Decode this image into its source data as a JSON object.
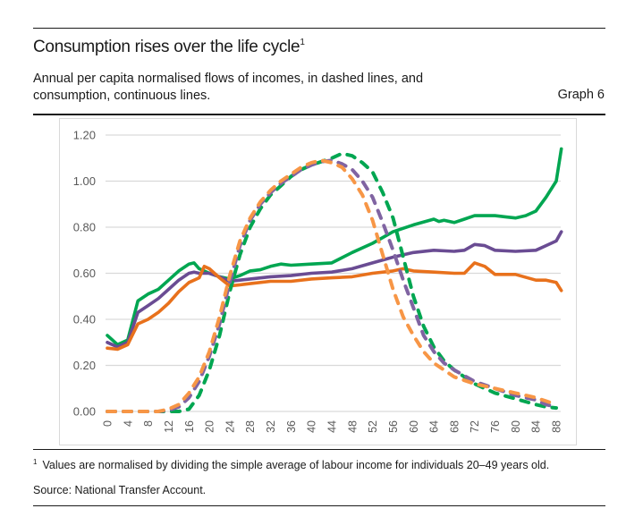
{
  "header": {
    "title": "Consumption rises over the life cycle",
    "title_footnote_marker": "1",
    "subtitle": "Annual per capita normalised flows of incomes, in dashed lines, and consumption, continuous lines.",
    "graph_label": "Graph 6"
  },
  "footer": {
    "footnote_marker": "1",
    "footnote_text": "Values are normalised by dividing the simple average of labour income for individuals 20–49 years old.",
    "source": "Source: National Transfer Account."
  },
  "chart_data": {
    "type": "line",
    "title": "Consumption rises over the life cycle",
    "xlabel": "",
    "ylabel": "",
    "xlim": [
      0,
      89
    ],
    "ylim": [
      0,
      1.2
    ],
    "grid": true,
    "legend": "none",
    "y_ticks": [
      "0.00",
      "0.20",
      "0.40",
      "0.60",
      "0.80",
      "1.00",
      "1.20"
    ],
    "y_tick_values": [
      0,
      0.2,
      0.4,
      0.6,
      0.8,
      1.0,
      1.2
    ],
    "x_ticks": [
      "0",
      "4",
      "8",
      "12",
      "16",
      "20",
      "24",
      "28",
      "32",
      "36",
      "40",
      "44",
      "48",
      "52",
      "56",
      "60",
      "64",
      "68",
      "72",
      "76",
      "80",
      "84",
      "88"
    ],
    "x_tick_values": [
      0,
      4,
      8,
      12,
      16,
      20,
      24,
      28,
      32,
      36,
      40,
      44,
      48,
      52,
      56,
      60,
      64,
      68,
      72,
      76,
      80,
      84,
      88
    ],
    "series": [
      {
        "name": "Consumption (green)",
        "style": "solid",
        "color": "#00a651",
        "x": [
          0,
          2,
          4,
          6,
          8,
          10,
          12,
          14,
          16,
          17,
          18,
          20,
          22,
          24,
          26,
          28,
          30,
          32,
          34,
          36,
          40,
          44,
          48,
          52,
          56,
          60,
          64,
          65,
          66,
          68,
          70,
          72,
          76,
          78,
          80,
          82,
          84,
          86,
          88,
          89
        ],
        "y": [
          0.33,
          0.29,
          0.31,
          0.48,
          0.51,
          0.53,
          0.57,
          0.61,
          0.64,
          0.645,
          0.62,
          0.6,
          0.585,
          0.575,
          0.59,
          0.61,
          0.615,
          0.63,
          0.64,
          0.635,
          0.64,
          0.645,
          0.69,
          0.73,
          0.78,
          0.81,
          0.835,
          0.825,
          0.83,
          0.82,
          0.835,
          0.85,
          0.85,
          0.845,
          0.84,
          0.85,
          0.87,
          0.93,
          1.0,
          1.14
        ]
      },
      {
        "name": "Consumption (purple)",
        "style": "solid",
        "color": "#6a4c93",
        "x": [
          0,
          2,
          4,
          6,
          8,
          10,
          12,
          14,
          16,
          17,
          18,
          20,
          22,
          24,
          26,
          28,
          32,
          36,
          40,
          44,
          48,
          52,
          56,
          60,
          64,
          68,
          70,
          72,
          74,
          76,
          80,
          84,
          86,
          88,
          89
        ],
        "y": [
          0.3,
          0.28,
          0.3,
          0.43,
          0.46,
          0.49,
          0.53,
          0.57,
          0.6,
          0.605,
          0.6,
          0.6,
          0.585,
          0.565,
          0.57,
          0.575,
          0.585,
          0.59,
          0.6,
          0.605,
          0.62,
          0.645,
          0.67,
          0.69,
          0.7,
          0.695,
          0.7,
          0.725,
          0.72,
          0.7,
          0.695,
          0.7,
          0.72,
          0.74,
          0.78
        ]
      },
      {
        "name": "Consumption (orange)",
        "style": "solid",
        "color": "#e8711c",
        "x": [
          0,
          2,
          4,
          6,
          8,
          10,
          12,
          14,
          16,
          18,
          19,
          20,
          22,
          24,
          26,
          28,
          32,
          36,
          40,
          44,
          48,
          52,
          56,
          58,
          60,
          64,
          68,
          70,
          72,
          74,
          76,
          80,
          84,
          86,
          88,
          89
        ],
        "y": [
          0.275,
          0.27,
          0.29,
          0.38,
          0.4,
          0.43,
          0.47,
          0.52,
          0.56,
          0.58,
          0.63,
          0.62,
          0.58,
          0.545,
          0.55,
          0.555,
          0.565,
          0.565,
          0.575,
          0.58,
          0.585,
          0.6,
          0.61,
          0.62,
          0.61,
          0.605,
          0.6,
          0.6,
          0.645,
          0.63,
          0.595,
          0.595,
          0.57,
          0.57,
          0.56,
          0.525
        ]
      },
      {
        "name": "Income (green, dashed)",
        "style": "dashed",
        "color": "#00a651",
        "x": [
          0,
          10,
          12,
          14,
          16,
          18,
          20,
          22,
          24,
          26,
          28,
          30,
          32,
          34,
          36,
          38,
          40,
          42,
          44,
          46,
          48,
          50,
          52,
          54,
          56,
          58,
          60,
          62,
          64,
          66,
          68,
          72,
          76,
          80,
          84,
          86,
          88
        ],
        "y": [
          0.0,
          0.0,
          0.0,
          0.0,
          0.01,
          0.07,
          0.18,
          0.33,
          0.52,
          0.68,
          0.8,
          0.88,
          0.94,
          0.98,
          1.02,
          1.05,
          1.07,
          1.085,
          1.1,
          1.12,
          1.11,
          1.08,
          1.04,
          0.95,
          0.84,
          0.67,
          0.5,
          0.37,
          0.28,
          0.22,
          0.18,
          0.12,
          0.08,
          0.055,
          0.03,
          0.02,
          0.015
        ]
      },
      {
        "name": "Income (purple, dashed)",
        "style": "dashed",
        "color": "#8064a2",
        "x": [
          0,
          10,
          12,
          14,
          16,
          18,
          20,
          22,
          24,
          26,
          28,
          30,
          32,
          34,
          36,
          38,
          40,
          42,
          44,
          46,
          48,
          50,
          52,
          54,
          56,
          58,
          60,
          62,
          64,
          66,
          68,
          72,
          76,
          80,
          84,
          86,
          88
        ],
        "y": [
          0.0,
          0.0,
          0.005,
          0.02,
          0.06,
          0.13,
          0.24,
          0.38,
          0.56,
          0.72,
          0.83,
          0.9,
          0.95,
          0.99,
          1.02,
          1.05,
          1.07,
          1.085,
          1.09,
          1.075,
          1.05,
          1.0,
          0.93,
          0.82,
          0.7,
          0.57,
          0.45,
          0.33,
          0.26,
          0.21,
          0.18,
          0.13,
          0.1,
          0.07,
          0.05,
          0.03,
          0.02
        ]
      },
      {
        "name": "Income (orange, dashed)",
        "style": "dashed",
        "color": "#f79646",
        "x": [
          0,
          10,
          12,
          14,
          16,
          18,
          20,
          22,
          24,
          26,
          28,
          30,
          32,
          34,
          36,
          38,
          40,
          42,
          44,
          46,
          48,
          50,
          52,
          54,
          56,
          58,
          60,
          62,
          64,
          66,
          68,
          72,
          76,
          80,
          84,
          86,
          88
        ],
        "y": [
          0.0,
          0.0,
          0.01,
          0.03,
          0.08,
          0.15,
          0.26,
          0.41,
          0.59,
          0.74,
          0.84,
          0.91,
          0.96,
          1.0,
          1.03,
          1.06,
          1.08,
          1.09,
          1.08,
          1.06,
          1.01,
          0.94,
          0.83,
          0.68,
          0.53,
          0.41,
          0.33,
          0.26,
          0.21,
          0.18,
          0.15,
          0.12,
          0.1,
          0.08,
          0.06,
          0.045,
          0.03
        ]
      }
    ]
  }
}
